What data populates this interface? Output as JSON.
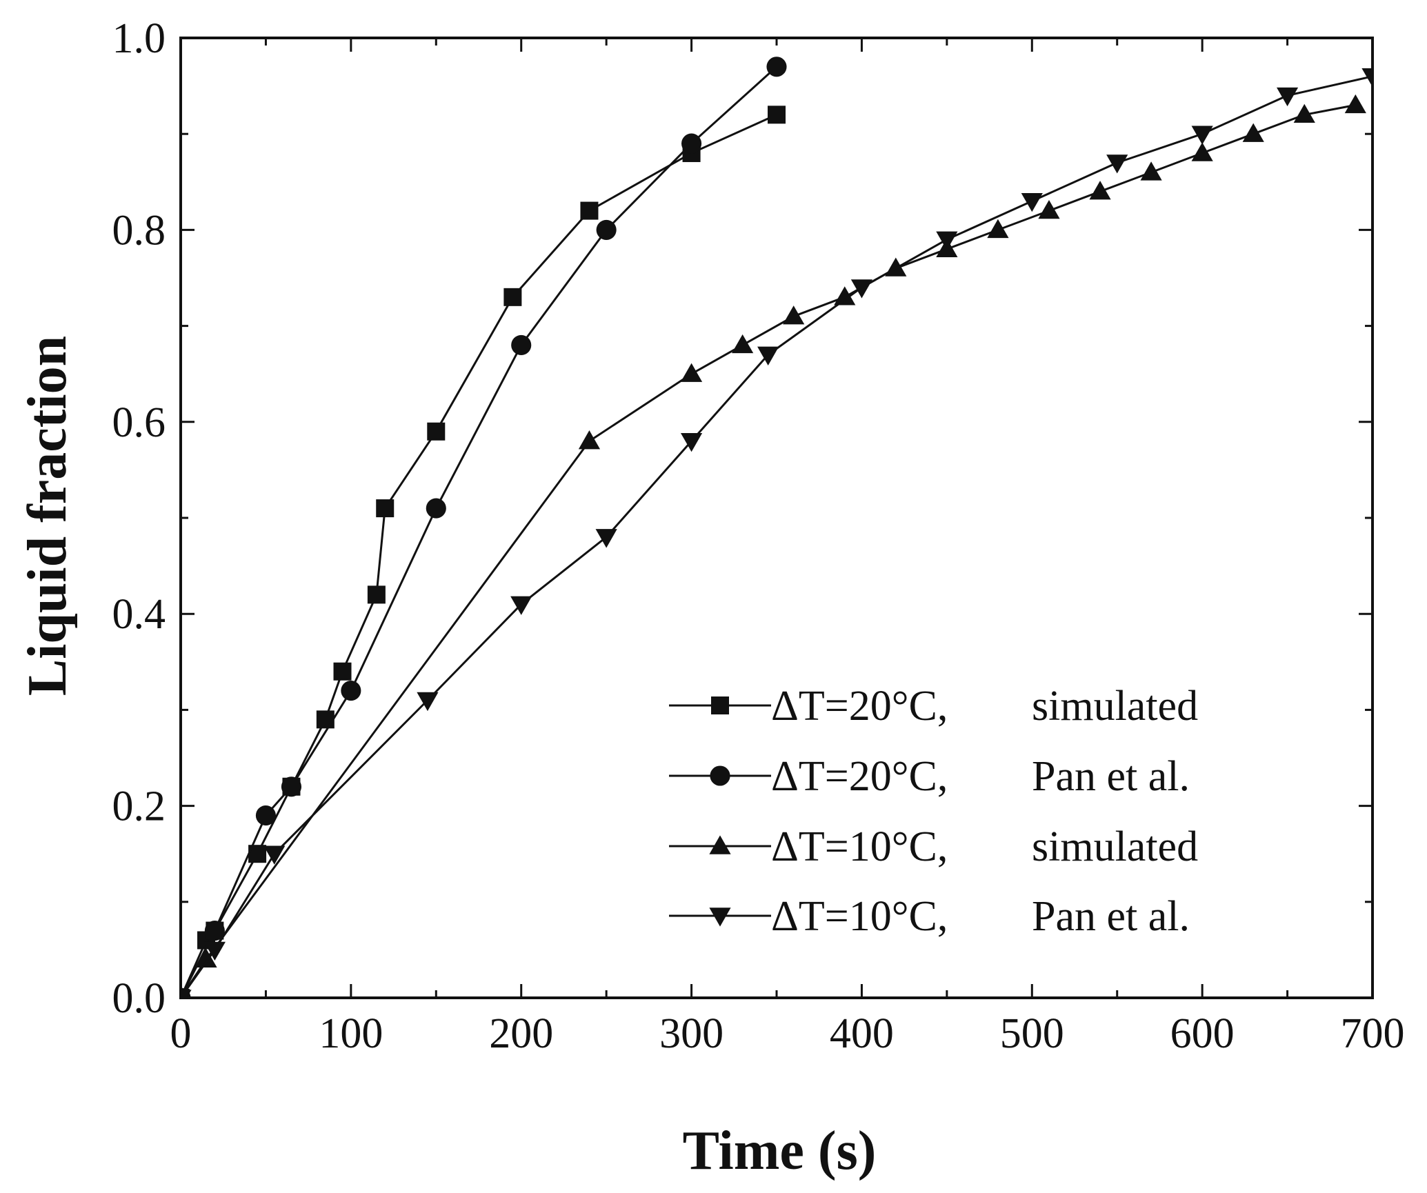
{
  "chart_data": {
    "type": "line",
    "title": "",
    "xlabel": "Time (s)",
    "ylabel": "Liquid fraction",
    "xlim": [
      0,
      700
    ],
    "ylim": [
      0.0,
      1.0
    ],
    "xticks": [
      0,
      100,
      200,
      300,
      400,
      500,
      600,
      700
    ],
    "yticks": [
      0.0,
      0.2,
      0.4,
      0.6,
      0.8,
      1.0
    ],
    "xtick_labels": [
      "0",
      "100",
      "200",
      "300",
      "400",
      "500",
      "600",
      "700"
    ],
    "ytick_labels": [
      "0.0",
      "0.2",
      "0.4",
      "0.6",
      "0.8",
      "1.0"
    ],
    "grid": false,
    "legend_position": "bottom-right",
    "line_color": "#111111",
    "series": [
      {
        "name": "ΔT=20°C, simulated",
        "label_a": "ΔT=20°C,",
        "label_b": "simulated",
        "marker": "square",
        "points": [
          [
            0,
            0.0
          ],
          [
            15,
            0.06
          ],
          [
            20,
            0.07
          ],
          [
            45,
            0.15
          ],
          [
            65,
            0.22
          ],
          [
            85,
            0.29
          ],
          [
            95,
            0.34
          ],
          [
            115,
            0.42
          ],
          [
            120,
            0.51
          ],
          [
            150,
            0.59
          ],
          [
            195,
            0.73
          ],
          [
            240,
            0.82
          ],
          [
            300,
            0.88
          ],
          [
            350,
            0.92
          ]
        ]
      },
      {
        "name": "ΔT=20°C, Pan et al.",
        "label_a": "ΔT=20°C,",
        "label_b": "Pan et al.",
        "marker": "circle",
        "points": [
          [
            0,
            0.0
          ],
          [
            20,
            0.07
          ],
          [
            50,
            0.19
          ],
          [
            65,
            0.22
          ],
          [
            100,
            0.32
          ],
          [
            150,
            0.51
          ],
          [
            200,
            0.68
          ],
          [
            250,
            0.8
          ],
          [
            300,
            0.89
          ],
          [
            350,
            0.97
          ]
        ]
      },
      {
        "name": "ΔT=10°C, simulated",
        "label_a": "ΔT=10°C,",
        "label_b": "simulated",
        "marker": "triangle-up",
        "points": [
          [
            0,
            0.0
          ],
          [
            15,
            0.04
          ],
          [
            240,
            0.58
          ],
          [
            300,
            0.65
          ],
          [
            330,
            0.68
          ],
          [
            360,
            0.71
          ],
          [
            390,
            0.73
          ],
          [
            420,
            0.76
          ],
          [
            450,
            0.78
          ],
          [
            480,
            0.8
          ],
          [
            510,
            0.82
          ],
          [
            540,
            0.84
          ],
          [
            570,
            0.86
          ],
          [
            600,
            0.88
          ],
          [
            630,
            0.9
          ],
          [
            660,
            0.92
          ],
          [
            690,
            0.93
          ]
        ]
      },
      {
        "name": "ΔT=10°C, Pan et al.",
        "label_a": "ΔT=10°C,",
        "label_b": "Pan et al.",
        "marker": "triangle-down",
        "points": [
          [
            0,
            0.0
          ],
          [
            20,
            0.05
          ],
          [
            55,
            0.15
          ],
          [
            145,
            0.31
          ],
          [
            200,
            0.41
          ],
          [
            250,
            0.48
          ],
          [
            300,
            0.58
          ],
          [
            345,
            0.67
          ],
          [
            400,
            0.74
          ],
          [
            450,
            0.79
          ],
          [
            500,
            0.83
          ],
          [
            550,
            0.87
          ],
          [
            600,
            0.9
          ],
          [
            650,
            0.94
          ],
          [
            700,
            0.96
          ]
        ]
      }
    ]
  }
}
